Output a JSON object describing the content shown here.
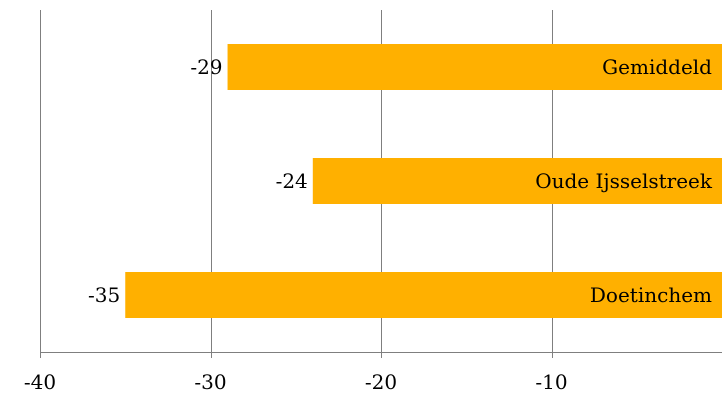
{
  "chart_data": {
    "type": "bar",
    "orientation": "horizontal",
    "categories": [
      "Gemiddeld",
      "Oude Ijsselstreek",
      "Doetinchem"
    ],
    "values": [
      -29,
      -24,
      -35
    ],
    "data_labels": [
      "-29",
      "-24",
      "-35"
    ],
    "title": "",
    "xlabel": "",
    "ylabel": "",
    "xlim": [
      -40,
      0
    ],
    "x_ticks": [
      -40,
      -30,
      -20,
      -10
    ],
    "x_tick_labels": [
      "-40",
      "-30",
      "-20",
      "-10"
    ],
    "grid": true,
    "legend": "none",
    "bar_color": "#FFB000",
    "grid_color": "#7F7F7F"
  }
}
